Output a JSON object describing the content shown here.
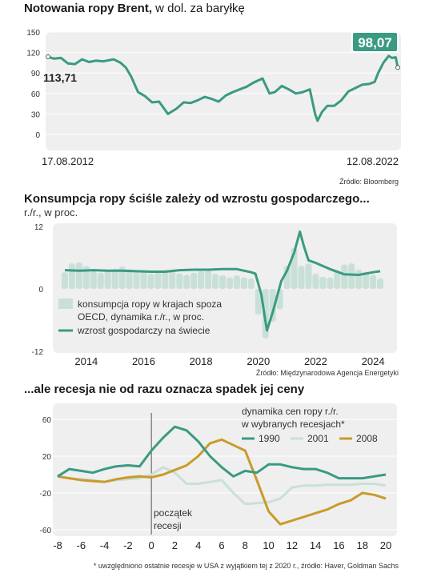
{
  "colors": {
    "teal": "#3a9a82",
    "light_teal": "#c9e0d8",
    "gold": "#c89b2a",
    "panel": "#efefef",
    "dark_teal_box": "#3a9a82"
  },
  "chart1": {
    "title_bold": "Notowania ropy Brent,",
    "title_rest": " w dol. za baryłkę",
    "source": "Źródło: Bloomberg"
  },
  "chart2": {
    "title": "Konsumpcja ropy ściśle zależy od wzrostu gospodarczego...",
    "subtitle": "r./r., w proc.",
    "source": "Źródło: Międzynarodowa Agencja Energetyki",
    "legend_bar_line1": "konsumpcja ropy w krajach spoza",
    "legend_bar_line2": "OECD, dynamika r./r., w proc.",
    "legend_line": "wzrost gospodarczy na świecie"
  },
  "chart3": {
    "title": "...ale recesja nie od razu oznacza spadek jej ceny",
    "legend_title_line1": "dynamika cen ropy r./r.",
    "legend_title_line2": "w wybranych recesjach*",
    "annotation_line1": "początek",
    "annotation_line2": "recesji",
    "footnote": "* uwzględniono ostatnie recesje w USA z wyjątkiem tej z 2020 r., źródło: Haver, Goldman Sachs"
  },
  "chart_data": [
    {
      "type": "line",
      "ylim": [
        0,
        150
      ],
      "yticks": [
        0,
        30,
        60,
        90,
        120,
        150
      ],
      "x_start_label": "17.08.2012",
      "x_end_label": "12.08.2022",
      "start_value": 113.71,
      "start_value_label": "113,71",
      "end_value": 98.07,
      "end_value_label": "98,07",
      "series": [
        {
          "x": [
            2012.63,
            2012.8,
            2013.0,
            2013.2,
            2013.4,
            2013.6,
            2013.8,
            2014.0,
            2014.2,
            2014.4,
            2014.5,
            2014.7,
            2014.85,
            2015.0,
            2015.2,
            2015.4,
            2015.6,
            2015.8,
            2016.05,
            2016.3,
            2016.5,
            2016.7,
            2016.9,
            2017.1,
            2017.3,
            2017.5,
            2017.7,
            2017.9,
            2018.1,
            2018.3,
            2018.5,
            2018.75,
            2018.95,
            2019.1,
            2019.3,
            2019.5,
            2019.7,
            2019.9,
            2020.1,
            2020.25,
            2020.32,
            2020.45,
            2020.6,
            2020.8,
            2021.0,
            2021.2,
            2021.4,
            2021.6,
            2021.8,
            2021.95,
            2022.05,
            2022.2,
            2022.35,
            2022.45,
            2022.55,
            2022.61
          ],
          "values": [
            113.71,
            111,
            112,
            104,
            103,
            110,
            106,
            108,
            107,
            109,
            110,
            105,
            98,
            85,
            62,
            56,
            47,
            48,
            30,
            38,
            47,
            46,
            50,
            55,
            52,
            48,
            57,
            62,
            66,
            70,
            76,
            82,
            60,
            62,
            71,
            66,
            60,
            62,
            66,
            30,
            20,
            33,
            42,
            42,
            50,
            63,
            68,
            73,
            74,
            77,
            90,
            105,
            115,
            112,
            113,
            98.07
          ]
        }
      ]
    },
    {
      "type": "bar",
      "ylim": [
        -12,
        12
      ],
      "yticks": [
        -12,
        0,
        12
      ],
      "xticks": [
        "2014",
        "2016",
        "2018",
        "2020",
        "2022",
        "2024"
      ],
      "series": [
        {
          "name": "konsumpcja ropy w krajach spoza OECD, dynamika r./r., w proc.",
          "type": "bar",
          "x": [
            2013.25,
            2013.5,
            2013.75,
            2014.0,
            2014.25,
            2014.5,
            2014.75,
            2015.0,
            2015.25,
            2015.5,
            2015.75,
            2016.0,
            2016.25,
            2016.5,
            2016.75,
            2017.0,
            2017.25,
            2017.5,
            2017.75,
            2018.0,
            2018.25,
            2018.5,
            2018.75,
            2019.0,
            2019.25,
            2019.5,
            2019.75,
            2020.0,
            2020.25,
            2020.5,
            2020.75,
            2021.0,
            2021.25,
            2021.5,
            2021.75,
            2022.0,
            2022.25,
            2022.5,
            2022.75,
            2023.0,
            2023.25,
            2023.5,
            2023.75,
            2024.0,
            2024.25
          ],
          "values": [
            3.2,
            4.9,
            5.1,
            4.4,
            3.4,
            3.1,
            3.5,
            3.9,
            4.3,
            3.8,
            3.3,
            3.4,
            2.9,
            3.2,
            3.6,
            3.3,
            3.0,
            2.7,
            3.1,
            3.4,
            3.6,
            2.9,
            2.6,
            2.2,
            2.6,
            2.2,
            2.0,
            -4.9,
            -9.5,
            -6.3,
            -3.9,
            4.4,
            7.9,
            4.4,
            4.9,
            2.9,
            2.3,
            2.2,
            3.6,
            4.7,
            4.9,
            3.7,
            3.3,
            2.7,
            2.0
          ]
        },
        {
          "name": "wzrost gospodarczy na świecie",
          "type": "line",
          "x": [
            2013.25,
            2013.75,
            2014.25,
            2014.75,
            2015.25,
            2015.75,
            2016.25,
            2016.75,
            2017.25,
            2017.75,
            2018.25,
            2018.75,
            2019.25,
            2019.75,
            2019.9,
            2020.1,
            2020.3,
            2020.5,
            2020.8,
            2021.0,
            2021.25,
            2021.45,
            2021.6,
            2021.75,
            2022.0,
            2022.5,
            2023.0,
            2023.5,
            2024.0,
            2024.25
          ],
          "values": [
            3.6,
            3.5,
            3.6,
            3.5,
            3.5,
            3.4,
            3.3,
            3.3,
            3.6,
            3.7,
            3.7,
            3.8,
            3.8,
            3.2,
            2.9,
            -1.0,
            -8.0,
            -4.5,
            1.5,
            3.5,
            7.0,
            11.0,
            8.0,
            5.5,
            5.0,
            3.8,
            2.8,
            2.7,
            3.2,
            3.4
          ]
        }
      ]
    },
    {
      "type": "line",
      "ylim": [
        -60,
        60
      ],
      "yticks": [
        -60,
        -20,
        20,
        60
      ],
      "x": [
        -8,
        -6,
        -4,
        -2,
        0,
        2,
        4,
        6,
        8,
        10,
        12,
        14,
        16,
        18,
        20
      ],
      "xticks": [
        "-8",
        "-6",
        "-4",
        "-2",
        "0",
        "2",
        "4",
        "6",
        "8",
        "10",
        "12",
        "14",
        "16",
        "18",
        "20"
      ],
      "series": [
        {
          "name": "1990",
          "color": "#3a9a82",
          "x": [
            -8,
            -7,
            -6,
            -5,
            -4,
            -3,
            -2,
            -1,
            0,
            1,
            2,
            3,
            4,
            5,
            6,
            7,
            8,
            9,
            10,
            11,
            12,
            13,
            14,
            15,
            16,
            17,
            18,
            19,
            20
          ],
          "values": [
            -2,
            6,
            4,
            2,
            6,
            9,
            10,
            9,
            26,
            40,
            52,
            48,
            36,
            20,
            8,
            -2,
            4,
            2,
            11,
            11,
            8,
            6,
            6,
            2,
            -4,
            -4,
            -4,
            -2,
            0
          ]
        },
        {
          "name": "2001",
          "color": "#c9e0d8",
          "x": [
            -8,
            -7,
            -6,
            -5,
            -4,
            -3,
            -2,
            -1,
            0,
            1,
            2,
            3,
            4,
            5,
            6,
            7,
            8,
            9,
            10,
            11,
            12,
            13,
            14,
            15,
            16,
            17,
            18,
            19,
            20
          ],
          "values": [
            -2,
            -4,
            -5,
            -6,
            -8,
            -6,
            -5,
            -4,
            0,
            8,
            2,
            -10,
            -10,
            -8,
            -6,
            -20,
            -32,
            -31,
            -30,
            -26,
            -14,
            -12,
            -12,
            -11,
            -11,
            -11,
            -10,
            -10,
            -12
          ]
        },
        {
          "name": "2008",
          "color": "#c89b2a",
          "x": [
            -8,
            -7,
            -6,
            -5,
            -4,
            -3,
            -2,
            -1,
            0,
            1,
            2,
            3,
            4,
            5,
            6,
            7,
            8,
            9,
            10,
            11,
            12,
            13,
            14,
            15,
            16,
            17,
            18,
            19,
            20
          ],
          "values": [
            -2,
            -4,
            -6,
            -7,
            -8,
            -5,
            -3,
            -2,
            -3,
            0,
            5,
            10,
            20,
            34,
            38,
            32,
            26,
            -6,
            -40,
            -54,
            -50,
            -46,
            -42,
            -38,
            -32,
            -28,
            -20,
            -22,
            -26
          ]
        }
      ]
    }
  ]
}
